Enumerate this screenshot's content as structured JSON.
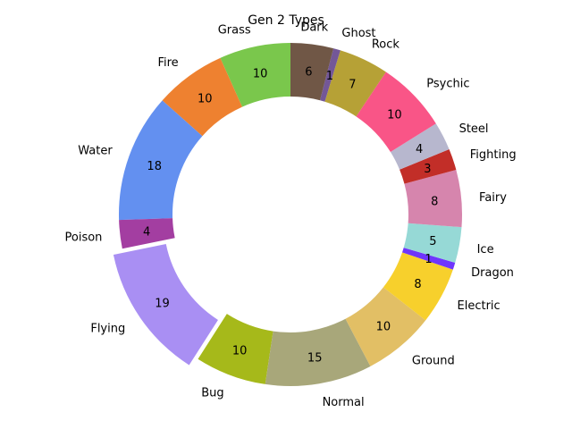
{
  "chart_data": {
    "type": "pie",
    "title": "Gen 2 Types",
    "style": "donut",
    "start_angle_deg": 90,
    "direction": "counterclockwise",
    "slices": [
      {
        "label": "Grass",
        "value": 10,
        "color": "#7ac74c",
        "explode": false
      },
      {
        "label": "Fire",
        "value": 10,
        "color": "#ee8130",
        "explode": false
      },
      {
        "label": "Water",
        "value": 18,
        "color": "#6390f0",
        "explode": false
      },
      {
        "label": "Poison",
        "value": 4,
        "color": "#a33ea1",
        "explode": false
      },
      {
        "label": "Flying",
        "value": 19,
        "color": "#a98ff3",
        "explode": true
      },
      {
        "label": "Bug",
        "value": 10,
        "color": "#a6b91a",
        "explode": false
      },
      {
        "label": "Normal",
        "value": 15,
        "color": "#a8a77a",
        "explode": false
      },
      {
        "label": "Ground",
        "value": 10,
        "color": "#e2bf65",
        "explode": false
      },
      {
        "label": "Electric",
        "value": 8,
        "color": "#f7d02c",
        "explode": false
      },
      {
        "label": "Dragon",
        "value": 1,
        "color": "#6f35fc",
        "explode": false
      },
      {
        "label": "Ice",
        "value": 5,
        "color": "#96d9d6",
        "explode": false
      },
      {
        "label": "Fairy",
        "value": 8,
        "color": "#d685ad",
        "explode": false
      },
      {
        "label": "Fighting",
        "value": 3,
        "color": "#c22e28",
        "explode": false
      },
      {
        "label": "Steel",
        "value": 4,
        "color": "#b7b7ce",
        "explode": false
      },
      {
        "label": "Psychic",
        "value": 10,
        "color": "#f95587",
        "explode": false
      },
      {
        "label": "Rock",
        "value": 7,
        "color": "#b6a136",
        "explode": false
      },
      {
        "label": "Ghost",
        "value": 1,
        "color": "#735797",
        "explode": false
      },
      {
        "label": "Dark",
        "value": 6,
        "color": "#705746",
        "explode": false
      }
    ]
  }
}
